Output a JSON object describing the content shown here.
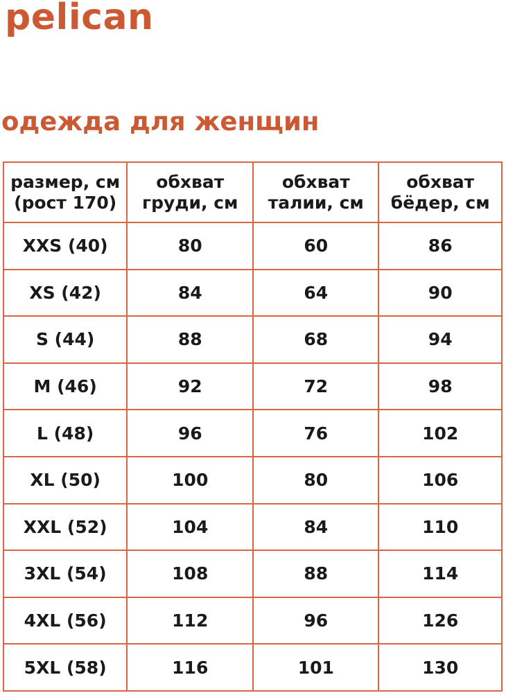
{
  "logo": {
    "text": "pelican"
  },
  "heading": {
    "text": "одежда для женщин"
  },
  "colors": {
    "brand_orange": "#CB5A34",
    "table_border": "#D96545",
    "text_black": "#1A1A1A"
  },
  "table": {
    "headers": [
      {
        "line1": "размер, см",
        "line2": "(рост 170)"
      },
      {
        "line1": "обхват",
        "line2": "груди, см"
      },
      {
        "line1": "обхват",
        "line2": "талии, см"
      },
      {
        "line1": "обхват",
        "line2": "бёдер, см"
      }
    ],
    "rows": [
      {
        "size": "XXS (40)",
        "chest": "80",
        "waist": "60",
        "hips": "86"
      },
      {
        "size": "XS (42)",
        "chest": "84",
        "waist": "64",
        "hips": "90"
      },
      {
        "size": "S (44)",
        "chest": "88",
        "waist": "68",
        "hips": "94"
      },
      {
        "size": "M (46)",
        "chest": "92",
        "waist": "72",
        "hips": "98"
      },
      {
        "size": "L (48)",
        "chest": "96",
        "waist": "76",
        "hips": "102"
      },
      {
        "size": "XL (50)",
        "chest": "100",
        "waist": "80",
        "hips": "106"
      },
      {
        "size": "XXL (52)",
        "chest": "104",
        "waist": "84",
        "hips": "110"
      },
      {
        "size": "3XL (54)",
        "chest": "108",
        "waist": "88",
        "hips": "114"
      },
      {
        "size": "4XL (56)",
        "chest": "112",
        "waist": "96",
        "hips": "126"
      },
      {
        "size": "5XL (58)",
        "chest": "116",
        "waist": "101",
        "hips": "130"
      }
    ]
  }
}
